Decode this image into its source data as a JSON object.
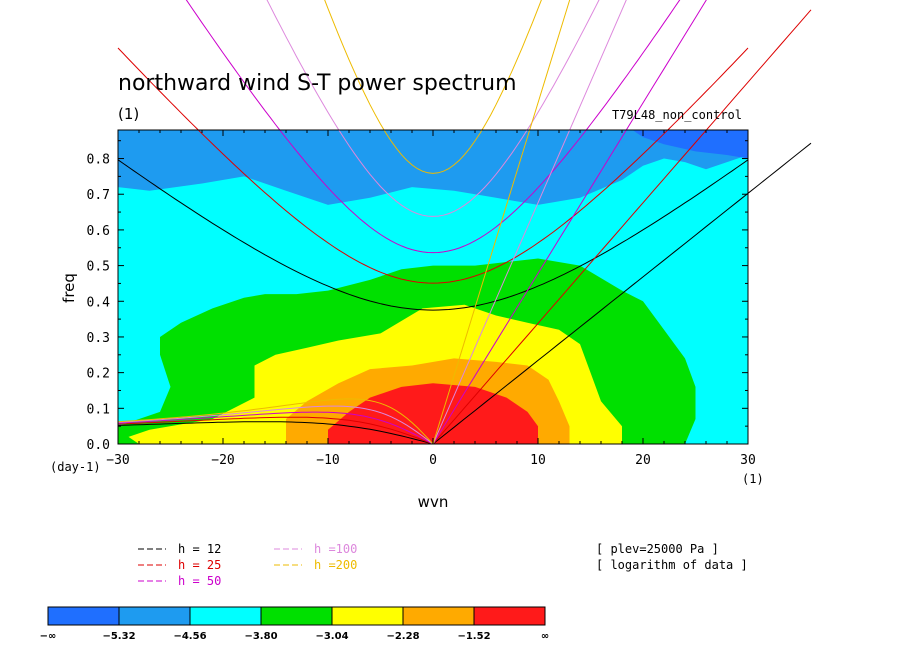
{
  "chart_data": {
    "type": "heatmap",
    "title": "northward wind S-T power spectrum",
    "title_unit": "(1)",
    "run_label": "T79L48_non_control",
    "xlabel": "wvn",
    "ylabel": "freq",
    "x_unit_label": "(1)",
    "y_unit_label": "(day-1)",
    "xlim": [
      -30,
      30
    ],
    "ylim": [
      0.0,
      0.88
    ],
    "x_ticks": [
      -30,
      -20,
      -10,
      0,
      10,
      20,
      30
    ],
    "x_tick_labels": [
      "−30",
      "−20",
      "−10",
      "0",
      "10",
      "20",
      "30"
    ],
    "y_ticks": [
      0.0,
      0.1,
      0.2,
      0.3,
      0.4,
      0.5,
      0.6,
      0.7,
      0.8
    ],
    "y_tick_labels": [
      "0.0",
      "0.1",
      "0.2",
      "0.3",
      "0.4",
      "0.5",
      "0.6",
      "0.7",
      "0.8"
    ],
    "contour_levels": [
      -5.32,
      -4.56,
      -3.8,
      -3.04,
      -2.28,
      -1.52
    ],
    "colorbar": {
      "colors": [
        "#1f6fff",
        "#1e9bf0",
        "#00ffff",
        "#00e000",
        "#ffff00",
        "#ffaa00",
        "#ff1a1a"
      ],
      "labels": [
        "−∞",
        "−5.32",
        "−4.56",
        "−3.80",
        "−3.04",
        "−2.28",
        "−1.52",
        "∞"
      ]
    },
    "regions": [
      {
        "level": 2,
        "color": "#00ffff",
        "polygon": [
          [
            -30,
            0.72
          ],
          [
            -27,
            0.71
          ],
          [
            -22,
            0.73
          ],
          [
            -18,
            0.75
          ],
          [
            -14,
            0.71
          ],
          [
            -10,
            0.67
          ],
          [
            -6,
            0.69
          ],
          [
            -2,
            0.72
          ],
          [
            2,
            0.71
          ],
          [
            6,
            0.69
          ],
          [
            10,
            0.67
          ],
          [
            14,
            0.69
          ],
          [
            18,
            0.74
          ],
          [
            20,
            0.78
          ],
          [
            22,
            0.8
          ],
          [
            24,
            0.79
          ],
          [
            26,
            0.77
          ],
          [
            28,
            0.79
          ],
          [
            30,
            0.81
          ],
          [
            30,
            0.0
          ],
          [
            -30,
            0.0
          ]
        ]
      },
      {
        "level": 3,
        "color": "#00e000",
        "polygon": [
          [
            -30,
            0.05
          ],
          [
            -26,
            0.09
          ],
          [
            -25,
            0.16
          ],
          [
            -26,
            0.25
          ],
          [
            -26,
            0.3
          ],
          [
            -24,
            0.34
          ],
          [
            -21,
            0.38
          ],
          [
            -18,
            0.41
          ],
          [
            -16,
            0.42
          ],
          [
            -13,
            0.42
          ],
          [
            -10,
            0.43
          ],
          [
            -6,
            0.46
          ],
          [
            -3,
            0.49
          ],
          [
            0,
            0.5
          ],
          [
            4,
            0.5
          ],
          [
            7,
            0.51
          ],
          [
            10,
            0.52
          ],
          [
            14,
            0.5
          ],
          [
            18,
            0.43
          ],
          [
            20,
            0.4
          ],
          [
            22,
            0.32
          ],
          [
            24,
            0.24
          ],
          [
            25,
            0.16
          ],
          [
            25,
            0.07
          ],
          [
            24,
            0.0
          ],
          [
            -30,
            0.0
          ]
        ]
      },
      {
        "level": 4,
        "color": "#ffff00",
        "polygon": [
          [
            -27,
            0.04
          ],
          [
            -21,
            0.07
          ],
          [
            -17,
            0.13
          ],
          [
            -17,
            0.22
          ],
          [
            -15,
            0.25
          ],
          [
            -12,
            0.27
          ],
          [
            -9,
            0.29
          ],
          [
            -5,
            0.31
          ],
          [
            -1,
            0.38
          ],
          [
            3,
            0.39
          ],
          [
            6,
            0.36
          ],
          [
            9,
            0.34
          ],
          [
            12,
            0.32
          ],
          [
            14,
            0.28
          ],
          [
            15,
            0.2
          ],
          [
            16,
            0.12
          ],
          [
            18,
            0.05
          ],
          [
            18,
            0.0
          ],
          [
            -21,
            0.0
          ],
          [
            -25,
            0.0
          ],
          [
            -28,
            0.0
          ],
          [
            -29,
            0.02
          ]
        ]
      },
      {
        "level": 5,
        "color": "#ffaa00",
        "polygon": [
          [
            -14,
            0.0
          ],
          [
            -14,
            0.07
          ],
          [
            -12,
            0.12
          ],
          [
            -9,
            0.17
          ],
          [
            -6,
            0.21
          ],
          [
            -2,
            0.22
          ],
          [
            2,
            0.24
          ],
          [
            6,
            0.23
          ],
          [
            9,
            0.22
          ],
          [
            11,
            0.18
          ],
          [
            12,
            0.12
          ],
          [
            13,
            0.05
          ],
          [
            13,
            0.0
          ]
        ]
      },
      {
        "level": 6,
        "color": "#ff1a1a",
        "polygon": [
          [
            -10,
            0.0
          ],
          [
            -10,
            0.04
          ],
          [
            -8,
            0.09
          ],
          [
            -6,
            0.13
          ],
          [
            -3,
            0.16
          ],
          [
            0,
            0.17
          ],
          [
            4,
            0.16
          ],
          [
            7,
            0.13
          ],
          [
            9,
            0.09
          ],
          [
            10,
            0.05
          ],
          [
            10,
            0.0
          ]
        ]
      },
      {
        "level": 0,
        "color": "#1f6fff",
        "polygon": [
          [
            19,
            0.88
          ],
          [
            20,
            0.86
          ],
          [
            22,
            0.84
          ],
          [
            25,
            0.82
          ],
          [
            28,
            0.81
          ],
          [
            30,
            0.8
          ],
          [
            30,
            0.88
          ]
        ]
      }
    ],
    "dispersion_curves": [
      {
        "h": 12,
        "label": "h = 12",
        "color": "#000000"
      },
      {
        "h": 25,
        "label": "h = 25",
        "color": "#dd0000"
      },
      {
        "h": 50,
        "label": "h = 50",
        "color": "#cc00cc"
      },
      {
        "h": 100,
        "label": "h =100",
        "color": "#dd88dd"
      },
      {
        "h": 200,
        "label": "h =200",
        "color": "#eebb00"
      }
    ],
    "annotations": [
      "[ plev=25000 Pa ]",
      "[ logarithm of data ]"
    ]
  }
}
